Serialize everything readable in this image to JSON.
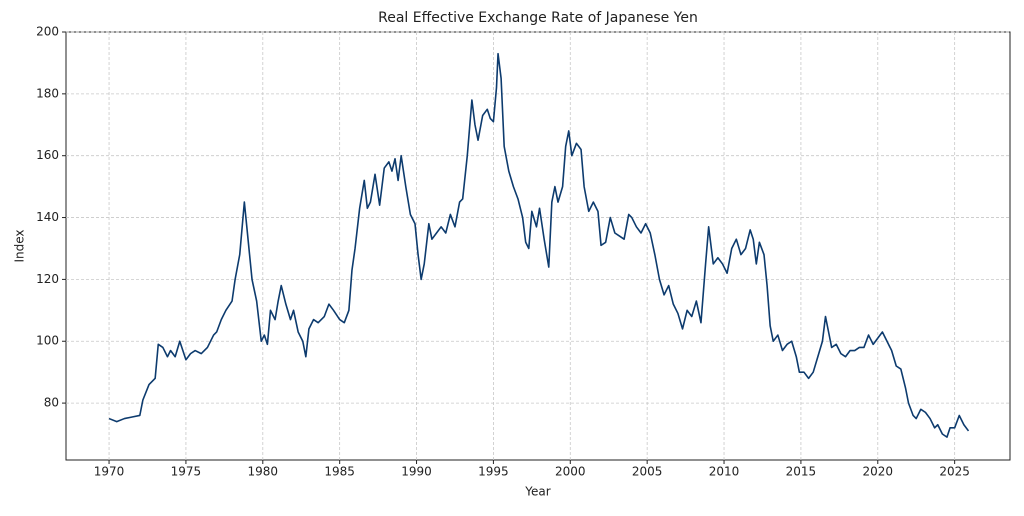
{
  "chart_data": {
    "type": "line",
    "title": "Real Effective Exchange Rate of Japanese Yen",
    "x_label": "Year",
    "y_label": "Index",
    "color": "#0d3b6e",
    "grid": true,
    "xlim": [
      1967.2,
      2028.6
    ],
    "ylim": [
      61.6,
      200
    ],
    "xticks": [
      1970,
      1975,
      1980,
      1985,
      1990,
      1995,
      2000,
      2005,
      2010,
      2015,
      2020,
      2025
    ],
    "yticks": [
      80,
      100,
      120,
      140,
      160,
      180,
      200
    ],
    "x": [
      1970.0,
      1970.5,
      1971.0,
      1971.5,
      1972.0,
      1972.2,
      1972.6,
      1973.0,
      1973.2,
      1973.5,
      1973.8,
      1974.0,
      1974.3,
      1974.6,
      1975.0,
      1975.3,
      1975.6,
      1976.0,
      1976.4,
      1976.8,
      1977.0,
      1977.3,
      1977.6,
      1978.0,
      1978.2,
      1978.5,
      1978.8,
      1979.0,
      1979.3,
      1979.6,
      1979.9,
      1980.1,
      1980.3,
      1980.5,
      1980.8,
      1981.0,
      1981.2,
      1981.5,
      1981.8,
      1982.0,
      1982.3,
      1982.6,
      1982.8,
      1983.0,
      1983.3,
      1983.6,
      1984.0,
      1984.3,
      1984.6,
      1985.0,
      1985.3,
      1985.6,
      1985.8,
      1986.0,
      1986.3,
      1986.6,
      1986.8,
      1987.0,
      1987.3,
      1987.6,
      1987.9,
      1988.2,
      1988.4,
      1988.6,
      1988.8,
      1989.0,
      1989.3,
      1989.6,
      1989.9,
      1990.1,
      1990.3,
      1990.5,
      1990.8,
      1991.0,
      1991.3,
      1991.6,
      1991.9,
      1992.2,
      1992.5,
      1992.8,
      1993.0,
      1993.3,
      1993.6,
      1993.8,
      1994.0,
      1994.3,
      1994.6,
      1994.8,
      1995.0,
      1995.2,
      1995.3,
      1995.5,
      1995.7,
      1996.0,
      1996.3,
      1996.6,
      1996.9,
      1997.1,
      1997.3,
      1997.5,
      1997.8,
      1998.0,
      1998.3,
      1998.6,
      1998.8,
      1999.0,
      1999.2,
      1999.5,
      1999.7,
      1999.9,
      2000.1,
      2000.4,
      2000.7,
      2000.9,
      2001.2,
      2001.5,
      2001.8,
      2002.0,
      2002.3,
      2002.6,
      2002.9,
      2003.2,
      2003.5,
      2003.8,
      2004.0,
      2004.3,
      2004.6,
      2004.9,
      2005.2,
      2005.5,
      2005.8,
      2006.1,
      2006.4,
      2006.7,
      2007.0,
      2007.3,
      2007.6,
      2007.9,
      2008.2,
      2008.5,
      2008.8,
      2009.0,
      2009.3,
      2009.6,
      2009.9,
      2010.2,
      2010.5,
      2010.8,
      2011.1,
      2011.4,
      2011.7,
      2011.9,
      2012.1,
      2012.3,
      2012.6,
      2012.8,
      2013.0,
      2013.2,
      2013.5,
      2013.8,
      2014.1,
      2014.4,
      2014.7,
      2014.9,
      2015.2,
      2015.5,
      2015.8,
      2016.1,
      2016.4,
      2016.6,
      2016.8,
      2017.0,
      2017.3,
      2017.6,
      2017.9,
      2018.2,
      2018.5,
      2018.8,
      2019.1,
      2019.4,
      2019.7,
      2020.0,
      2020.3,
      2020.6,
      2020.9,
      2021.2,
      2021.5,
      2021.8,
      2022.0,
      2022.3,
      2022.5,
      2022.8,
      2023.1,
      2023.4,
      2023.7,
      2023.9,
      2024.2,
      2024.5,
      2024.7,
      2025.0,
      2025.3,
      2025.6,
      2025.9
    ],
    "values": [
      75,
      74,
      75,
      75.5,
      76,
      81,
      86,
      88,
      99,
      98,
      95,
      97,
      95,
      100,
      94,
      96,
      97,
      96,
      98,
      102,
      103,
      107,
      110,
      113,
      120,
      128,
      145,
      135,
      120,
      113,
      100,
      102,
      99,
      110,
      107,
      113,
      118,
      112,
      107,
      110,
      103,
      100,
      95,
      104,
      107,
      106,
      108,
      112,
      110,
      107,
      106,
      110,
      123,
      130,
      143,
      152,
      143,
      145,
      154,
      144,
      156,
      158,
      155,
      159,
      152,
      160,
      150,
      141,
      138,
      128,
      120,
      125,
      138,
      133,
      135,
      137,
      135,
      141,
      137,
      145,
      146,
      160,
      178,
      170,
      165,
      173,
      175,
      172,
      171,
      182,
      193,
      185,
      163,
      155,
      150,
      146,
      140,
      132,
      130,
      142,
      137,
      143,
      133,
      124,
      145,
      150,
      145,
      150,
      163,
      168,
      160,
      164,
      162,
      150,
      142,
      145,
      142,
      131,
      132,
      140,
      135,
      134,
      133,
      141,
      140,
      137,
      135,
      138,
      135,
      128,
      120,
      115,
      118,
      112,
      109,
      104,
      110,
      108,
      113,
      106,
      125,
      137,
      125,
      127,
      125,
      122,
      130,
      133,
      128,
      130,
      136,
      133,
      125,
      132,
      128,
      118,
      105,
      100,
      102,
      97,
      99,
      100,
      95,
      90,
      90,
      88,
      90,
      95,
      100,
      108,
      103,
      98,
      99,
      96,
      95,
      97,
      97,
      98,
      98,
      102,
      99,
      101,
      103,
      100,
      97,
      92,
      91,
      85,
      80,
      76,
      75,
      78,
      77,
      75,
      72,
      73,
      70,
      69,
      72,
      72,
      76,
      73,
      71
    ]
  }
}
